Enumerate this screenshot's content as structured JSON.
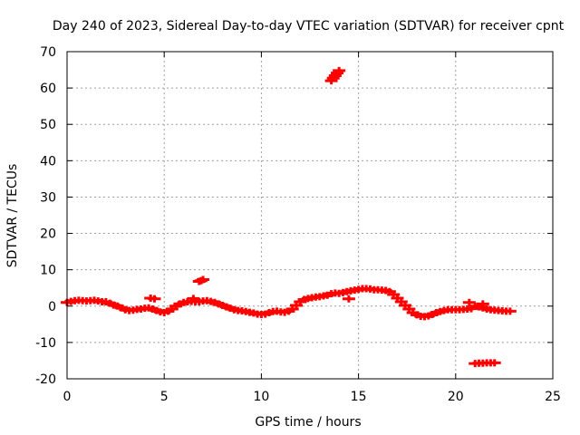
{
  "chart_data": {
    "type": "scatter",
    "title": "Day 240 of 2023, Sidereal Day-to-day VTEC variation (SDTVAR) for receiver cpnt",
    "xlabel": "GPS time / hours",
    "ylabel": "SDTVAR / TECUs",
    "xlim": [
      0,
      25
    ],
    "ylim": [
      -20,
      70
    ],
    "xticks": [
      0,
      5,
      10,
      15,
      20,
      25
    ],
    "yticks": [
      -20,
      -10,
      0,
      10,
      20,
      30,
      40,
      50,
      60,
      70
    ],
    "grid": true,
    "marker": "plus",
    "color": "#ff0000",
    "series": [
      {
        "name": "main",
        "x": [
          0.0,
          0.2,
          0.4,
          0.6,
          0.8,
          1.0,
          1.2,
          1.4,
          1.6,
          1.8,
          2.0,
          2.2,
          2.4,
          2.6,
          2.8,
          3.0,
          3.2,
          3.4,
          3.6,
          3.8,
          4.0,
          4.2,
          4.4,
          4.6,
          4.8,
          5.0,
          5.2,
          5.4,
          5.6,
          5.8,
          6.0,
          6.2,
          6.4,
          6.6,
          6.8,
          7.0,
          7.2,
          7.4,
          7.6,
          7.8,
          8.0,
          8.2,
          8.4,
          8.6,
          8.8,
          9.0,
          9.2,
          9.4,
          9.6,
          9.8,
          10.0,
          10.2,
          10.4,
          10.6,
          10.8,
          11.0,
          11.2,
          11.4,
          11.6,
          11.8,
          12.0,
          12.2,
          12.4,
          12.6,
          12.8,
          13.0,
          13.2,
          13.4,
          13.6,
          13.8,
          14.0,
          14.2,
          14.4,
          14.6,
          14.8,
          15.0,
          15.2,
          15.4,
          15.6,
          15.8,
          16.0,
          16.2,
          16.4,
          16.6,
          16.8,
          17.0,
          17.2,
          17.4,
          17.6,
          17.8,
          18.0,
          18.2,
          18.4,
          18.6,
          18.8,
          19.0,
          19.2,
          19.4,
          19.6,
          19.8,
          20.0,
          20.2,
          20.4,
          20.6,
          20.8,
          21.0,
          21.2,
          21.4,
          21.6,
          21.8,
          22.0,
          22.2,
          22.4,
          22.6,
          22.8
        ],
        "y": [
          1.0,
          1.3,
          1.5,
          1.6,
          1.5,
          1.4,
          1.5,
          1.6,
          1.4,
          1.2,
          1.2,
          0.8,
          0.3,
          0.0,
          -0.5,
          -1.0,
          -1.2,
          -1.1,
          -0.9,
          -0.8,
          -0.6,
          -0.5,
          -0.8,
          -1.2,
          -1.6,
          -1.8,
          -1.4,
          -0.8,
          0.0,
          0.6,
          1.0,
          1.2,
          1.3,
          1.2,
          1.2,
          1.4,
          1.5,
          1.3,
          1.0,
          0.6,
          0.2,
          -0.2,
          -0.6,
          -1.0,
          -1.2,
          -1.3,
          -1.5,
          -1.7,
          -1.9,
          -2.2,
          -2.3,
          -2.2,
          -1.8,
          -1.5,
          -1.4,
          -1.6,
          -1.7,
          -1.4,
          -0.8,
          0.2,
          1.2,
          1.8,
          2.1,
          2.3,
          2.5,
          2.6,
          2.8,
          3.0,
          3.4,
          3.6,
          3.5,
          3.7,
          4.0,
          4.2,
          4.4,
          4.6,
          4.8,
          4.8,
          4.7,
          4.5,
          4.5,
          4.4,
          4.3,
          4.0,
          3.2,
          2.2,
          1.2,
          0.2,
          -0.8,
          -1.8,
          -2.4,
          -2.8,
          -2.9,
          -2.7,
          -2.3,
          -1.8,
          -1.5,
          -1.2,
          -1.0,
          -1.0,
          -1.0,
          -1.0,
          -0.9,
          -0.8,
          -0.7,
          0.0,
          -0.2,
          -0.5,
          -0.8,
          -1.0,
          -1.1,
          -1.2,
          -1.3,
          -1.4,
          -1.4
        ]
      },
      {
        "name": "outliers",
        "x": [
          13.6,
          13.7,
          13.8,
          13.9,
          14.0,
          6.8,
          6.9,
          7.0,
          4.3,
          4.5,
          6.5,
          14.5,
          21.0,
          21.2,
          21.4,
          21.6,
          21.8,
          22.0,
          20.7,
          21.4
        ],
        "y": [
          62.0,
          62.7,
          63.4,
          64.1,
          64.8,
          6.8,
          7.0,
          7.3,
          2.2,
          2.0,
          2.1,
          2.0,
          -15.8,
          -15.7,
          -15.7,
          -15.6,
          -15.6,
          -15.6,
          1.0,
          0.6
        ]
      }
    ]
  }
}
